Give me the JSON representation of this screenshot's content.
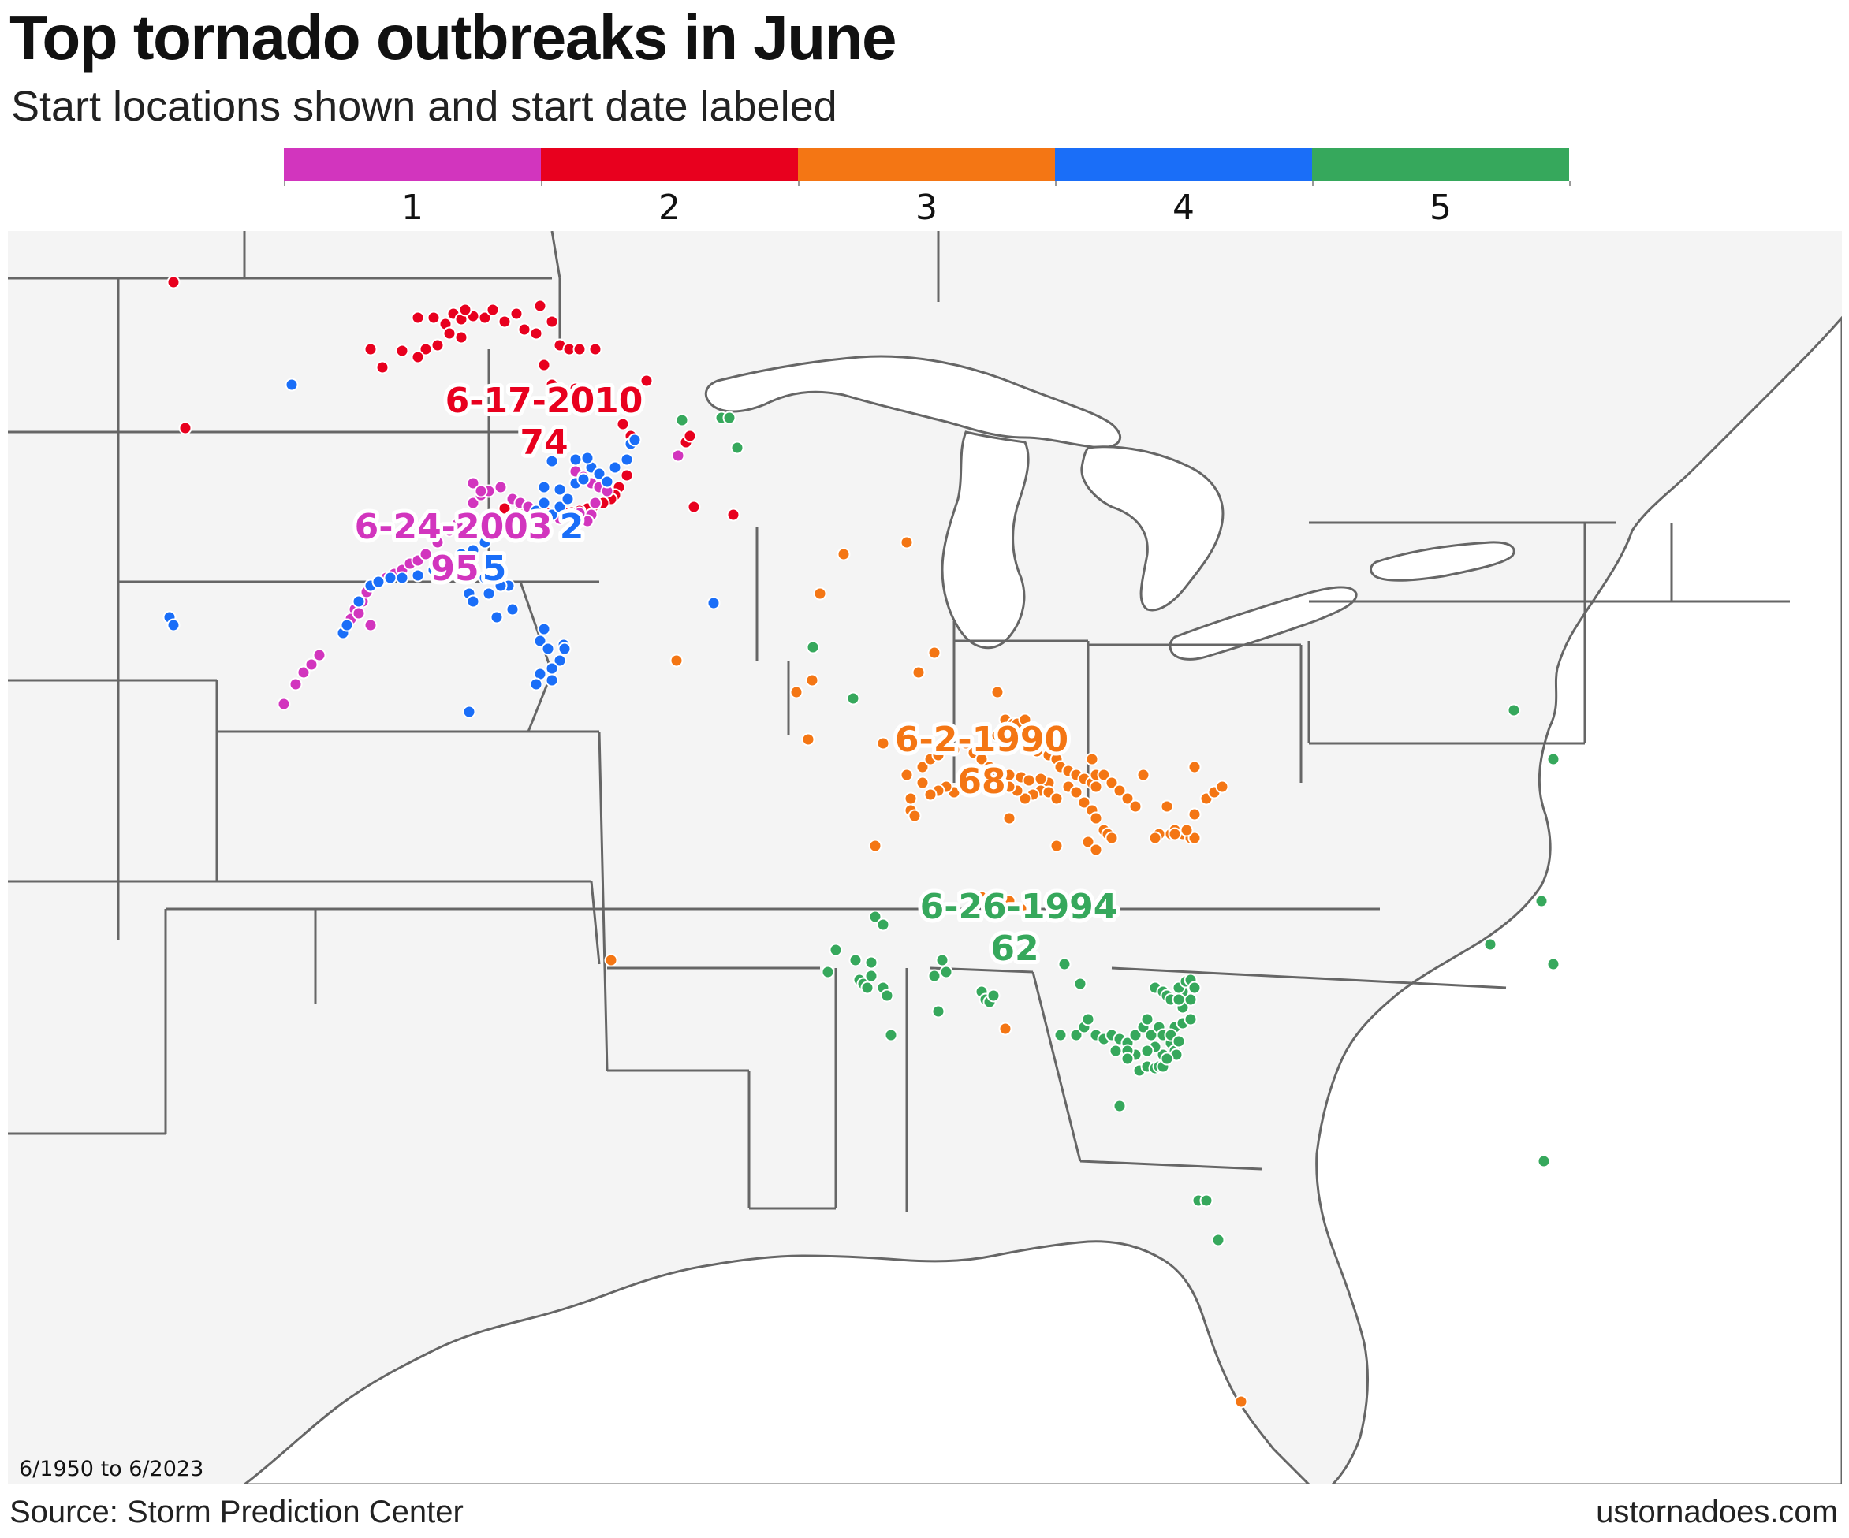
{
  "title": "Top tornado outbreaks in June",
  "subtitle": "Start locations shown and start date labeled",
  "legend": {
    "entries": [
      {
        "rank": "1",
        "color": "#d235be"
      },
      {
        "rank": "2",
        "color": "#e8001e"
      },
      {
        "rank": "3",
        "color": "#f47614"
      },
      {
        "rank": "4",
        "color": "#1a6ef8"
      },
      {
        "rank": "5",
        "color": "#36a85c"
      }
    ]
  },
  "period_note": "6/1950 to 6/2023",
  "source": "Source: Storm Prediction Center",
  "credit": "ustornadoes.com",
  "map": {
    "colors": {
      "land": "#f4f4f4",
      "water": "#ffffff",
      "border": "#666666"
    },
    "outbreaks": [
      {
        "rank": 1,
        "date": "6-24-2003",
        "count": "95",
        "color": "#d235be"
      },
      {
        "rank": 2,
        "date": "6-17-2010",
        "count": "74",
        "color": "#e8001e"
      },
      {
        "rank": 3,
        "date": "6-2-1990",
        "count": "68",
        "color": "#f47614"
      },
      {
        "rank": 4,
        "date": "",
        "count": "",
        "partial_label": "2",
        "partial_count": "5",
        "color": "#1a6ef8"
      },
      {
        "rank": 5,
        "date": "6-26-1994",
        "count": "62",
        "color": "#36a85c"
      }
    ]
  }
}
